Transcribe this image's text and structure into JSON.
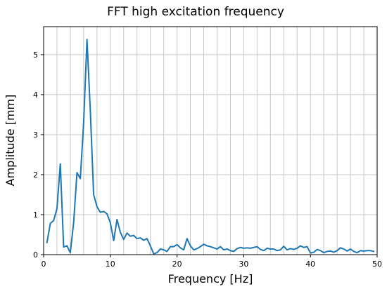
{
  "chart_data": {
    "type": "line",
    "title": "FFT high excitation frequency",
    "xlabel": "Frequency [Hz]",
    "ylabel": "Amplitude [mm]",
    "xlim": [
      0,
      50
    ],
    "ylim": [
      0,
      5.7
    ],
    "xticks": [
      0,
      10,
      20,
      30,
      40,
      50
    ],
    "yticks": [
      0,
      1,
      2,
      3,
      4,
      5
    ],
    "x_minor_grid_step": 2,
    "grid": true,
    "series": [
      {
        "color": "#1f77b4",
        "x": [
          0.5,
          1.0,
          1.5,
          2.0,
          2.5,
          3.0,
          3.5,
          4.0,
          4.5,
          5.0,
          5.5,
          6.0,
          6.5,
          7.0,
          7.5,
          8.0,
          8.5,
          9.0,
          9.5,
          10.0,
          10.5,
          11.0,
          11.5,
          12.0,
          12.5,
          13.0,
          13.5,
          14.0,
          14.5,
          15.0,
          15.5,
          16.0,
          16.5,
          17.0,
          17.5,
          18.0,
          18.5,
          19.0,
          19.5,
          20.0,
          20.5,
          21.0,
          21.5,
          22.0,
          22.5,
          23.0,
          23.5,
          24.0,
          24.5,
          25.0,
          25.5,
          26.0,
          26.5,
          27.0,
          27.5,
          28.0,
          28.5,
          29.0,
          29.5,
          30.0,
          30.5,
          31.0,
          31.5,
          32.0,
          32.5,
          33.0,
          33.5,
          34.0,
          34.5,
          35.0,
          35.5,
          36.0,
          36.5,
          37.0,
          37.5,
          38.0,
          38.5,
          39.0,
          39.5,
          40.0,
          40.5,
          41.0,
          41.5,
          42.0,
          42.5,
          43.0,
          43.5,
          44.0,
          44.5,
          45.0,
          45.5,
          46.0,
          46.5,
          47.0,
          47.5,
          48.0,
          48.5,
          49.0,
          49.5
        ],
        "y": [
          0.3,
          0.78,
          0.85,
          1.15,
          2.27,
          0.19,
          0.22,
          0.05,
          0.8,
          2.05,
          1.9,
          3.3,
          5.38,
          3.6,
          1.5,
          1.2,
          1.06,
          1.08,
          1.02,
          0.8,
          0.35,
          0.88,
          0.56,
          0.38,
          0.54,
          0.46,
          0.48,
          0.4,
          0.42,
          0.36,
          0.4,
          0.22,
          0.02,
          0.05,
          0.14,
          0.12,
          0.08,
          0.2,
          0.2,
          0.25,
          0.17,
          0.12,
          0.4,
          0.22,
          0.12,
          0.15,
          0.2,
          0.26,
          0.22,
          0.2,
          0.17,
          0.14,
          0.2,
          0.12,
          0.14,
          0.1,
          0.08,
          0.15,
          0.18,
          0.16,
          0.17,
          0.16,
          0.18,
          0.2,
          0.13,
          0.1,
          0.16,
          0.14,
          0.14,
          0.1,
          0.12,
          0.21,
          0.12,
          0.15,
          0.13,
          0.16,
          0.22,
          0.18,
          0.2,
          0.04,
          0.06,
          0.13,
          0.1,
          0.05,
          0.08,
          0.09,
          0.06,
          0.1,
          0.17,
          0.14,
          0.09,
          0.14,
          0.08,
          0.05,
          0.1,
          0.09,
          0.1,
          0.1,
          0.08
        ]
      }
    ]
  }
}
